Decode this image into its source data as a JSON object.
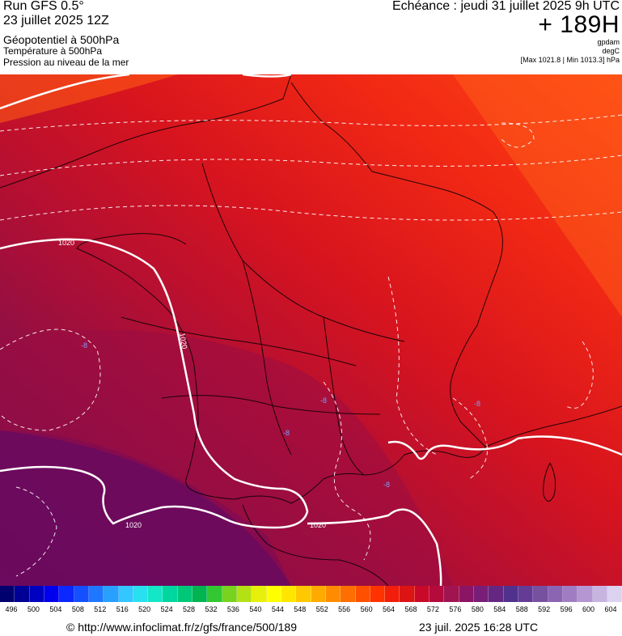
{
  "header": {
    "run": "Run GFS 0.5°",
    "run_date": "23 juillet 2025 12Z",
    "title": "Géopotentiel à 500hPa",
    "subtitle_temp": "Température à 500hPa",
    "subtitle_pres": "Pression au niveau de la mer",
    "echeance": "Echéance : jeudi 31 juillet 2025 9h UTC",
    "lead": "+ 189H",
    "unit_geo": "gpdam",
    "unit_temp": "degC",
    "unit_pres": "[Max 1021.8 | Min 1013.3] hPa"
  },
  "map": {
    "isobar_labels": [
      "1020",
      "1020",
      "1020",
      "1020"
    ],
    "temp_labels": [
      "-8",
      "-8",
      "-8",
      "-8",
      "-8"
    ]
  },
  "scale": {
    "ticks": [
      "496",
      "500",
      "504",
      "508",
      "512",
      "516",
      "520",
      "524",
      "528",
      "532",
      "536",
      "540",
      "544",
      "548",
      "552",
      "556",
      "560",
      "564",
      "568",
      "572",
      "576",
      "580",
      "584",
      "588",
      "592",
      "596",
      "600",
      "604"
    ],
    "colors": [
      "#00006e",
      "#000096",
      "#0000c0",
      "#0000ee",
      "#0a28ff",
      "#1450ff",
      "#1e78ff",
      "#28a0ff",
      "#32c8ff",
      "#28e0f0",
      "#14e6c8",
      "#00d7a0",
      "#00c878",
      "#00b450",
      "#32c832",
      "#78d21e",
      "#b4e114",
      "#e6f00a",
      "#ffff00",
      "#ffe600",
      "#ffc800",
      "#ffaa00",
      "#ff8c00",
      "#ff6e00",
      "#ff5000",
      "#ff3200",
      "#f01e0a",
      "#dc1414",
      "#c80a28",
      "#b40a3c",
      "#a01450",
      "#8c1464",
      "#781e78",
      "#642882",
      "#50328c",
      "#643c96",
      "#7850a0",
      "#8c64b4",
      "#a07dc3",
      "#b496d2",
      "#c8b4e1",
      "#dcd2f0"
    ]
  },
  "footer": {
    "source": "© http://www.infoclimat.fr/z/gfs/france/500/189",
    "generated": "23 juil. 2025 16:28 UTC"
  }
}
